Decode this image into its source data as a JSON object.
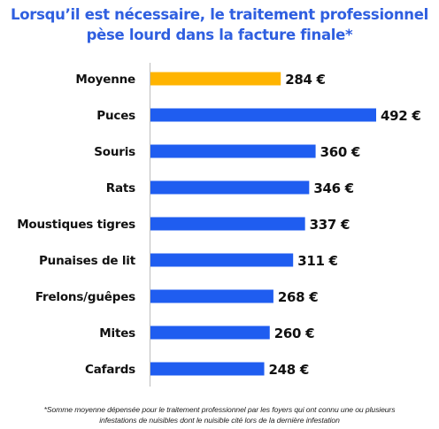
{
  "title": {
    "line1": "Lorsqu’il est nécessaire, le traitement professionnel",
    "line2": "pèse lourd dans la facture finale*"
  },
  "footnote": {
    "line1": "*Somme moyenne dépensée pour le traitement professionnel par les foyers qui ont connu une ou plusieurs",
    "line2": "infestations de nuisibles dont le nuisible cité lors de la dernière infestation"
  },
  "colors": {
    "title": "#2f5fe0",
    "bar": "#1f5df0",
    "highlight": "#ffb400",
    "axis": "#bdbdbd",
    "label": "#111111"
  },
  "chart_data": {
    "type": "bar",
    "orientation": "horizontal",
    "categories": [
      "Moyenne",
      "Puces",
      "Souris",
      "Rats",
      "Moustiques tigres",
      "Punaises de lit",
      "Frelons/guêpes",
      "Mites",
      "Cafards"
    ],
    "values": [
      284,
      492,
      360,
      346,
      337,
      311,
      268,
      260,
      248
    ],
    "value_labels": [
      "284 €",
      "492 €",
      "360 €",
      "346 €",
      "337 €",
      "311 €",
      "268 €",
      "260 €",
      "248 €"
    ],
    "highlight_category": "Moyenne",
    "unit": "€",
    "xlim": [
      0,
      492
    ],
    "grid": false,
    "legend": "none"
  }
}
